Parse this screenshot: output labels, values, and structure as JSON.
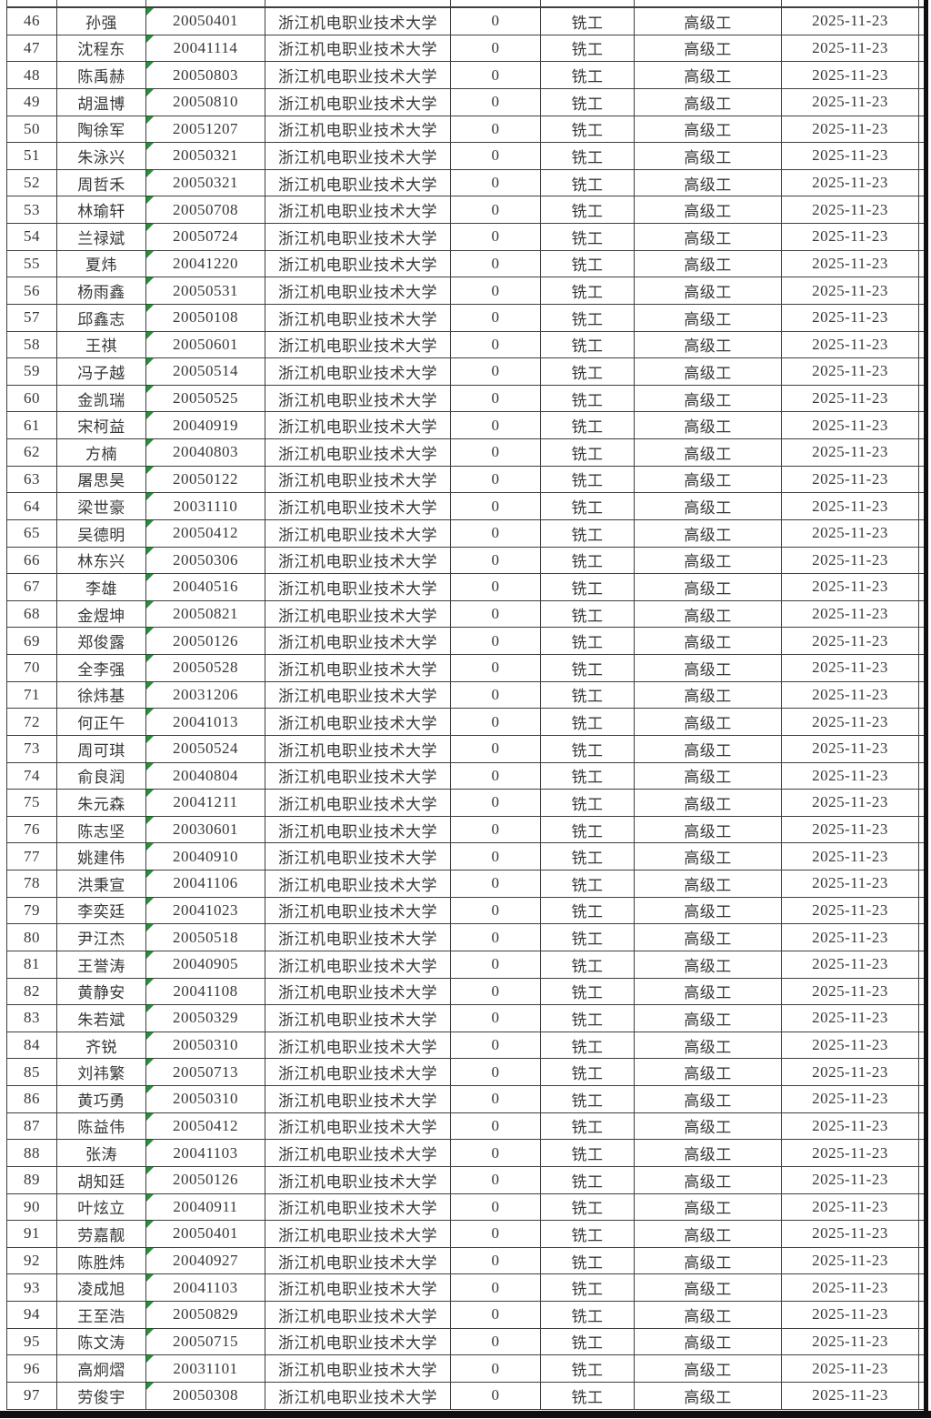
{
  "colors": {
    "border": "#3f3f3f",
    "text": "#373737",
    "error_triangle_green": "#1e9638",
    "page_edge_black": "#101010"
  },
  "table": {
    "shared": {
      "school": "浙江机电职业技术大学",
      "count": "0",
      "trade": "铣工",
      "grade": "高级工",
      "date": "2025-11-23"
    },
    "rows": [
      {
        "no": "46",
        "name": "孙强",
        "code": "20050401"
      },
      {
        "no": "47",
        "name": "沈程东",
        "code": "20041114"
      },
      {
        "no": "48",
        "name": "陈禹赫",
        "code": "20050803"
      },
      {
        "no": "49",
        "name": "胡温博",
        "code": "20050810"
      },
      {
        "no": "50",
        "name": "陶徐军",
        "code": "20051207"
      },
      {
        "no": "51",
        "name": "朱泳兴",
        "code": "20050321"
      },
      {
        "no": "52",
        "name": "周哲禾",
        "code": "20050321"
      },
      {
        "no": "53",
        "name": "林瑜轩",
        "code": "20050708"
      },
      {
        "no": "54",
        "name": "兰禄斌",
        "code": "20050724"
      },
      {
        "no": "55",
        "name": "夏炜",
        "code": "20041220"
      },
      {
        "no": "56",
        "name": "杨雨鑫",
        "code": "20050531"
      },
      {
        "no": "57",
        "name": "邱鑫志",
        "code": "20050108"
      },
      {
        "no": "58",
        "name": "王祺",
        "code": "20050601"
      },
      {
        "no": "59",
        "name": "冯子越",
        "code": "20050514"
      },
      {
        "no": "60",
        "name": "金凯瑞",
        "code": "20050525"
      },
      {
        "no": "61",
        "name": "宋柯益",
        "code": "20040919"
      },
      {
        "no": "62",
        "name": "方楠",
        "code": "20040803"
      },
      {
        "no": "63",
        "name": "屠思昊",
        "code": "20050122"
      },
      {
        "no": "64",
        "name": "梁世豪",
        "code": "20031110"
      },
      {
        "no": "65",
        "name": "吴德明",
        "code": "20050412"
      },
      {
        "no": "66",
        "name": "林东兴",
        "code": "20050306"
      },
      {
        "no": "67",
        "name": "李雄",
        "code": "20040516"
      },
      {
        "no": "68",
        "name": "金煜坤",
        "code": "20050821"
      },
      {
        "no": "69",
        "name": "郑俊露",
        "code": "20050126"
      },
      {
        "no": "70",
        "name": "全李强",
        "code": "20050528"
      },
      {
        "no": "71",
        "name": "徐炜基",
        "code": "20031206"
      },
      {
        "no": "72",
        "name": "何正午",
        "code": "20041013"
      },
      {
        "no": "73",
        "name": "周可琪",
        "code": "20050524"
      },
      {
        "no": "74",
        "name": "俞良润",
        "code": "20040804"
      },
      {
        "no": "75",
        "name": "朱元森",
        "code": "20041211"
      },
      {
        "no": "76",
        "name": "陈志坚",
        "code": "20030601"
      },
      {
        "no": "77",
        "name": "姚建伟",
        "code": "20040910"
      },
      {
        "no": "78",
        "name": "洪秉宣",
        "code": "20041106"
      },
      {
        "no": "79",
        "name": "李奕廷",
        "code": "20041023"
      },
      {
        "no": "80",
        "name": "尹江杰",
        "code": "20050518"
      },
      {
        "no": "81",
        "name": "王誉涛",
        "code": "20040905"
      },
      {
        "no": "82",
        "name": "黄静安",
        "code": "20041108"
      },
      {
        "no": "83",
        "name": "朱若斌",
        "code": "20050329"
      },
      {
        "no": "84",
        "name": "齐锐",
        "code": "20050310"
      },
      {
        "no": "85",
        "name": "刘祎繁",
        "code": "20050713"
      },
      {
        "no": "86",
        "name": "黄巧勇",
        "code": "20050310"
      },
      {
        "no": "87",
        "name": "陈益伟",
        "code": "20050412"
      },
      {
        "no": "88",
        "name": "张涛",
        "code": "20041103"
      },
      {
        "no": "89",
        "name": "胡知廷",
        "code": "20050126"
      },
      {
        "no": "90",
        "name": "叶炫立",
        "code": "20040911"
      },
      {
        "no": "91",
        "name": "劳嘉靓",
        "code": "20050401"
      },
      {
        "no": "92",
        "name": "陈胜炜",
        "code": "20040927"
      },
      {
        "no": "93",
        "name": "凌成旭",
        "code": "20041103"
      },
      {
        "no": "94",
        "name": "王至浩",
        "code": "20050829"
      },
      {
        "no": "95",
        "name": "陈文涛",
        "code": "20050715"
      },
      {
        "no": "96",
        "name": "高炯熠",
        "code": "20031101"
      },
      {
        "no": "97",
        "name": "劳俊宇",
        "code": "20050308"
      }
    ]
  }
}
